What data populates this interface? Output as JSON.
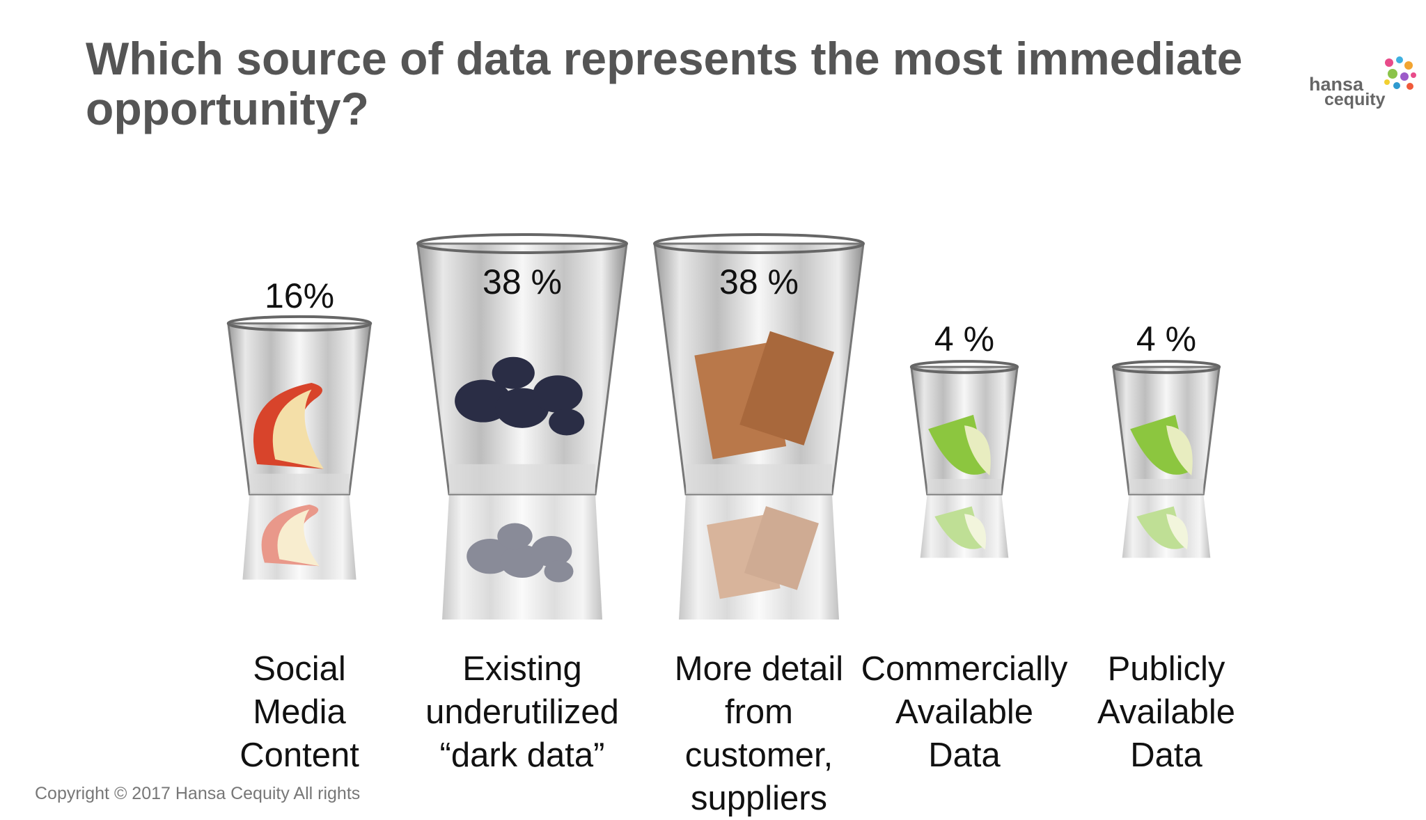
{
  "title": "Which source of data represents the most immediate opportunity?",
  "logo": {
    "line1": "hansa",
    "line2": "cequity"
  },
  "copyright": "Copyright © 2017 Hansa Cequity  All rights",
  "colors": {
    "title": "#555555",
    "text": "#111111",
    "apple": "#d8442b",
    "blueberry": "#2a2d45",
    "chocolate": "#b9784a",
    "lime": "#8cc63f"
  },
  "chart_data": {
    "type": "bar",
    "categories": [
      "Social\nMedia\nContent",
      "Existing\nunderutilized\n“dark data”",
      "More detail\nfrom\ncustomer,\nsuppliers",
      "Commercially\nAvailable\nData",
      "Publicly\nAvailable\nData"
    ],
    "values": [
      16,
      38,
      38,
      4,
      4
    ],
    "value_labels": [
      "16%",
      "38 %",
      "38 %",
      "4 %",
      "4 %"
    ],
    "fill_icons": [
      "apple-slice",
      "blueberries",
      "chocolate",
      "lime-wedge",
      "lime-wedge"
    ],
    "unit": "%"
  }
}
